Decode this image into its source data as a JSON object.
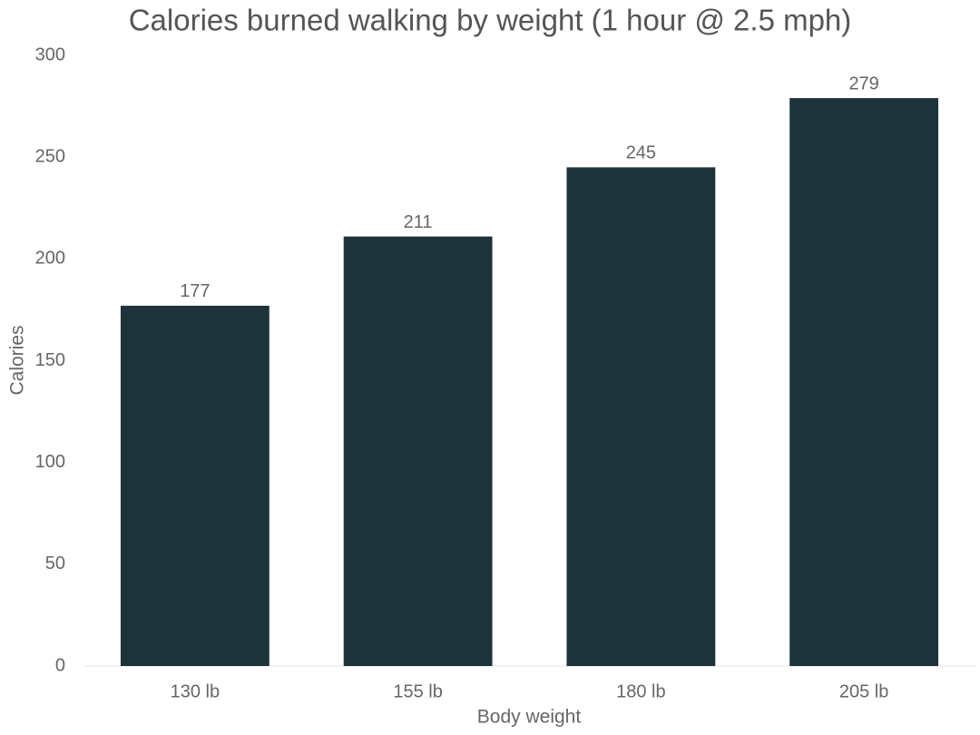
{
  "chart_data": {
    "type": "bar",
    "title": "Calories burned walking by weight (1 hour @ 2.5 mph)",
    "x_label": "Body weight",
    "y_label": "Calories",
    "categories": [
      "130 lb",
      "155 lb",
      "180 lb",
      "205 lb"
    ],
    "values": [
      177,
      211,
      245,
      279
    ],
    "color": "#1e3339",
    "ylim": [
      0,
      300
    ],
    "yticks": [
      0,
      50,
      100,
      150,
      200,
      250,
      300
    ],
    "grid": false
  }
}
